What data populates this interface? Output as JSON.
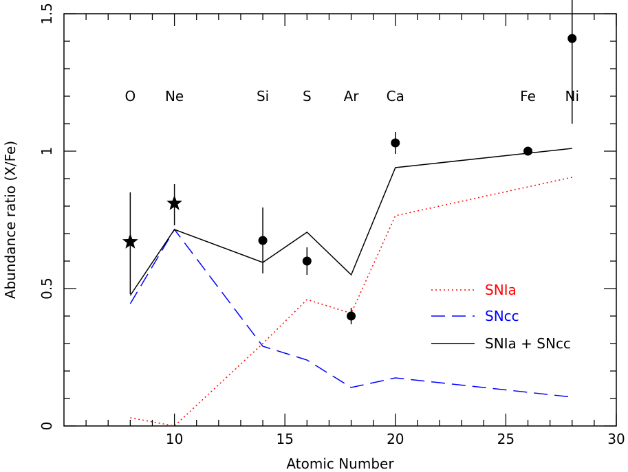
{
  "chart_data": {
    "type": "line",
    "xlabel": "Atomic Number",
    "ylabel": "Abundance ratio (X/Fe)",
    "xlim": [
      5,
      30
    ],
    "ylim": [
      0,
      1.5
    ],
    "x_ticks": [
      10,
      15,
      20,
      25,
      30
    ],
    "y_ticks": [
      0,
      0.5,
      1,
      1.5
    ],
    "x_tick_labels": [
      "10",
      "15",
      "20",
      "25",
      "30"
    ],
    "y_tick_labels": [
      "0",
      "0.5",
      "1",
      "1.5"
    ],
    "element_labels": [
      {
        "x": 8,
        "y": 1.2,
        "text": "O"
      },
      {
        "x": 10,
        "y": 1.2,
        "text": "Ne"
      },
      {
        "x": 14,
        "y": 1.2,
        "text": "Si"
      },
      {
        "x": 16,
        "y": 1.2,
        "text": "S"
      },
      {
        "x": 18,
        "y": 1.2,
        "text": "Ar"
      },
      {
        "x": 20,
        "y": 1.2,
        "text": "Ca"
      },
      {
        "x": 26,
        "y": 1.2,
        "text": "Fe"
      },
      {
        "x": 28,
        "y": 1.2,
        "text": "Ni"
      }
    ],
    "observations": [
      {
        "x": 8,
        "y": 0.67,
        "err_low": 0.48,
        "err_high": 0.85,
        "marker": "star"
      },
      {
        "x": 10,
        "y": 0.81,
        "err_low": 0.73,
        "err_high": 0.88,
        "marker": "star"
      },
      {
        "x": 14,
        "y": 0.675,
        "err_low": 0.555,
        "err_high": 0.795,
        "marker": "circle"
      },
      {
        "x": 16,
        "y": 0.6,
        "err_low": 0.55,
        "err_high": 0.65,
        "marker": "circle"
      },
      {
        "x": 18,
        "y": 0.4,
        "err_low": 0.37,
        "err_high": 0.43,
        "marker": "circle"
      },
      {
        "x": 20,
        "y": 1.03,
        "err_low": 0.99,
        "err_high": 1.07,
        "marker": "circle"
      },
      {
        "x": 26,
        "y": 1.0,
        "err_low": 1.0,
        "err_high": 1.0,
        "marker": "circle"
      },
      {
        "x": 28,
        "y": 1.41,
        "err_low": 1.1,
        "err_high": 1.6,
        "marker": "circle"
      }
    ],
    "series": [
      {
        "name": "SNIa",
        "color": "#ff0000",
        "dash": "dotted",
        "x": [
          8,
          10,
          14,
          16,
          18,
          20,
          28
        ],
        "y": [
          0.03,
          0.0,
          0.3,
          0.46,
          0.41,
          0.765,
          0.905
        ]
      },
      {
        "name": "SNcc",
        "color": "#0000ff",
        "dash": "dashed",
        "x": [
          8,
          10,
          14,
          16,
          18,
          20,
          28
        ],
        "y": [
          0.445,
          0.715,
          0.29,
          0.24,
          0.14,
          0.175,
          0.105
        ]
      },
      {
        "name": "SNIa + SNcc",
        "color": "#000000",
        "dash": "solid",
        "x": [
          8,
          10,
          14,
          16,
          18,
          20,
          28
        ],
        "y": [
          0.475,
          0.715,
          0.595,
          0.705,
          0.55,
          0.94,
          1.01
        ]
      }
    ],
    "legend": {
      "position": "bottom-right",
      "entries": [
        "SNIa",
        "SNcc",
        "SNIa + SNcc"
      ]
    }
  }
}
